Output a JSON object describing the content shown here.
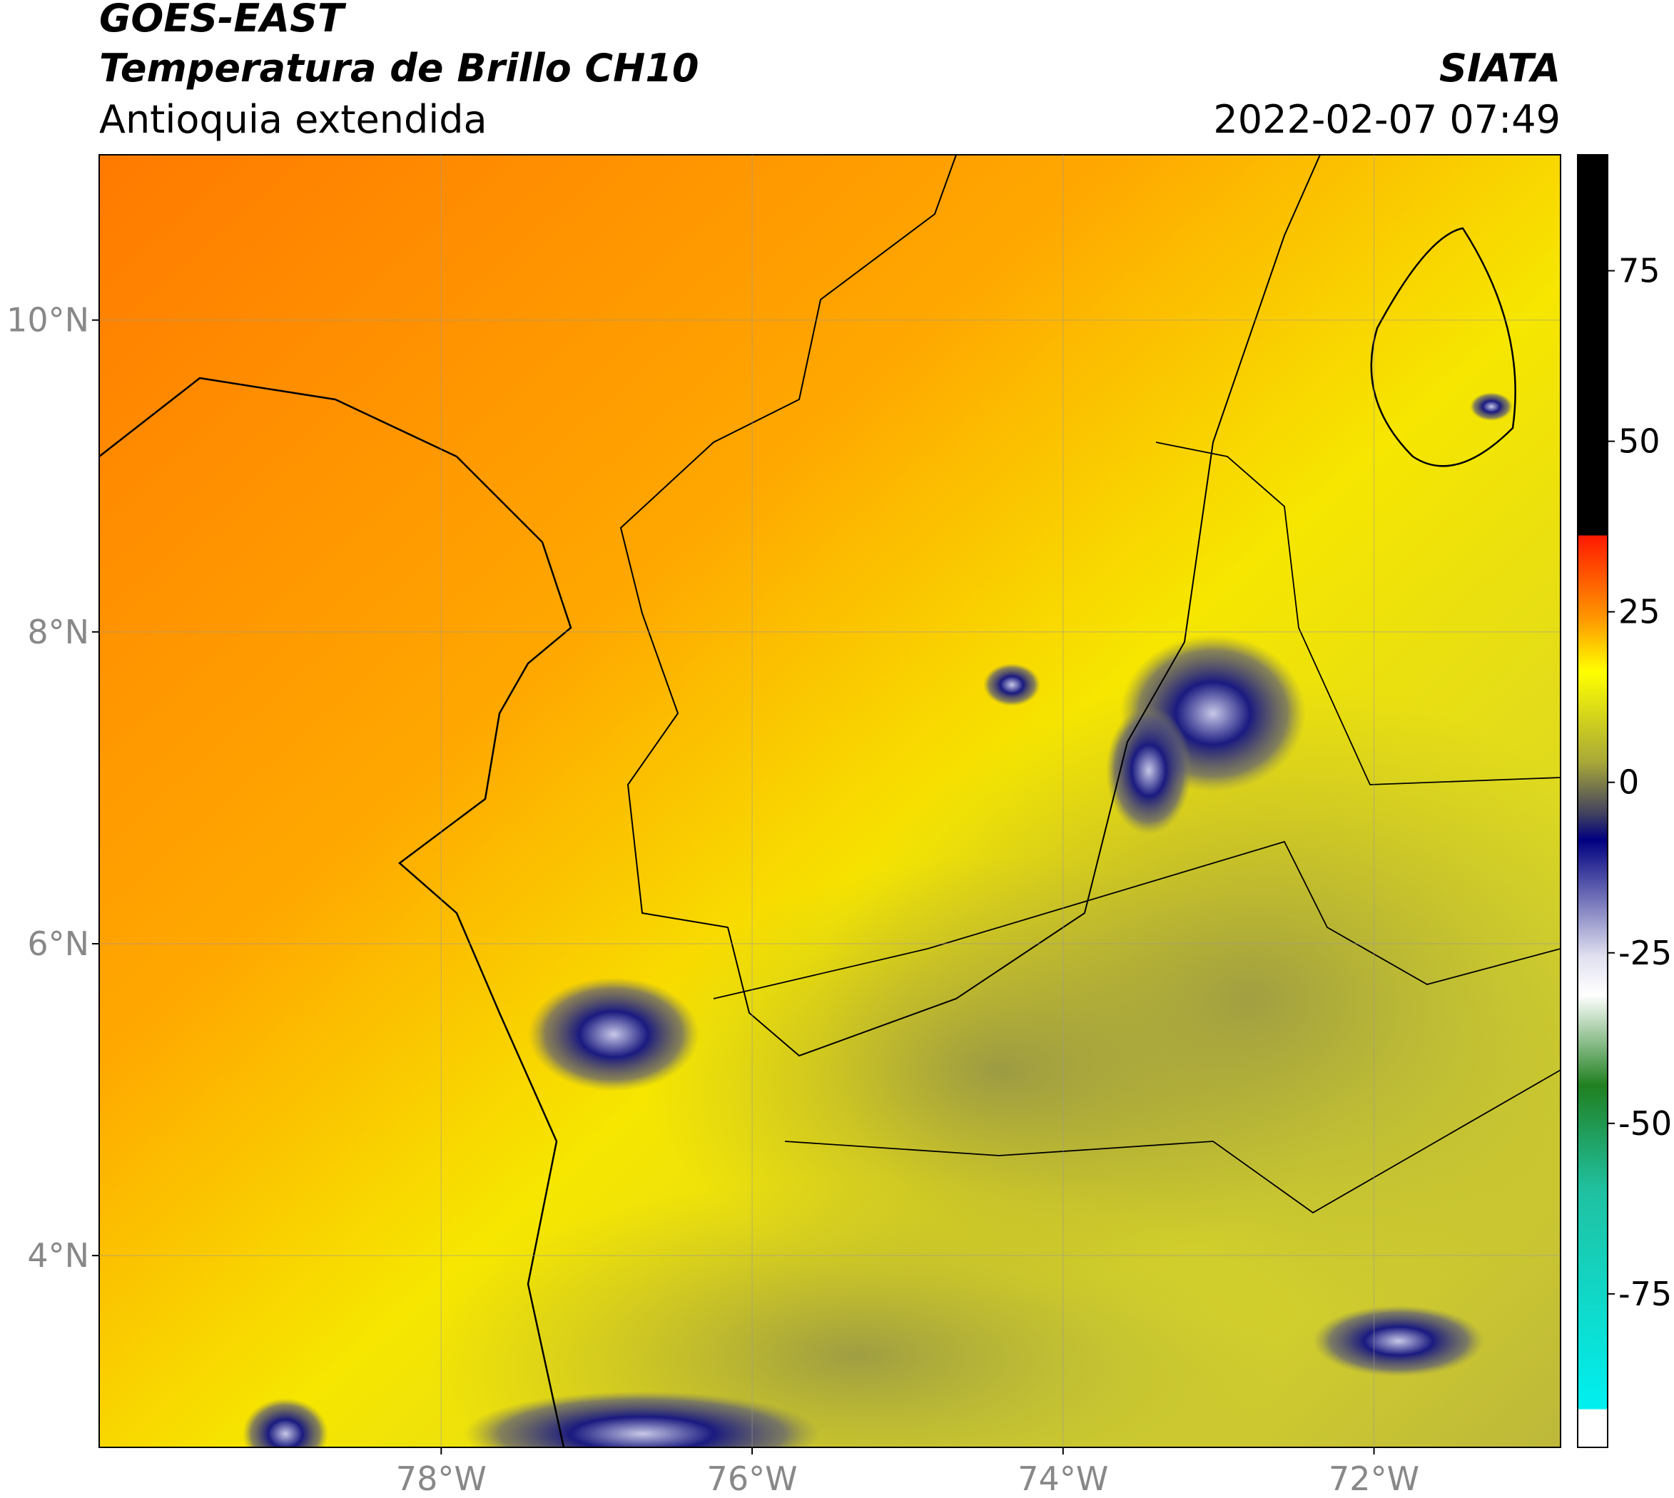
{
  "header": {
    "title": "GOES-EAST",
    "subtitle": "Temperatura de Brillo CH10",
    "region": "Antioquia extendida",
    "source": "SIATA",
    "datetime": "2022-02-07 07:49"
  },
  "map": {
    "xlim": [
      -80.2,
      -70.8
    ],
    "ylim": [
      2.77,
      11.06
    ],
    "xticks": [
      {
        "value": -78,
        "label": "78°W"
      },
      {
        "value": -76,
        "label": "76°W"
      },
      {
        "value": -74,
        "label": "74°W"
      },
      {
        "value": -72,
        "label": "72°W"
      }
    ],
    "yticks": [
      {
        "value": 10,
        "label": "10°N"
      },
      {
        "value": 8,
        "label": "8°N"
      },
      {
        "value": 6,
        "label": "6°N"
      },
      {
        "value": 4,
        "label": "4°N"
      }
    ],
    "grid": true
  },
  "colorbar": {
    "clim": [
      -97.5,
      92
    ],
    "ticks": [
      75,
      50,
      25,
      0,
      -25,
      -50,
      -75
    ]
  }
}
